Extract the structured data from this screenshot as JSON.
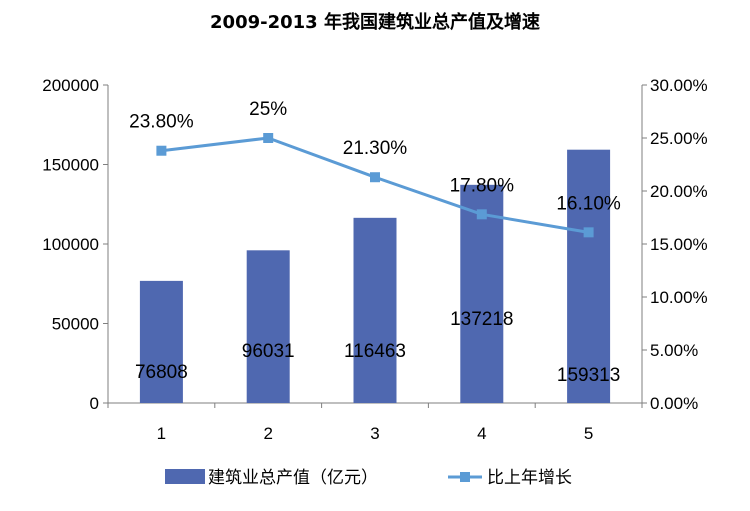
{
  "chart_data": {
    "type": "bar",
    "title": "2009-2013 年我国建筑业总产值及增速",
    "categories": [
      "1",
      "2",
      "3",
      "4",
      "5"
    ],
    "series": [
      {
        "name": "建筑业总产值（亿元）",
        "type": "bar",
        "axis": "left",
        "values": [
          76808,
          96031,
          116463,
          137218,
          159313
        ],
        "labels": [
          "76808",
          "96031",
          "116463",
          "137218",
          "159313"
        ],
        "color": "#4f68b0"
      },
      {
        "name": "比上年增长",
        "type": "line",
        "axis": "right",
        "values": [
          0.238,
          0.25,
          0.213,
          0.178,
          0.161
        ],
        "labels": [
          "23.80%",
          "25%",
          "21.30%",
          "17.80%",
          "16.10%"
        ],
        "color": "#5b9bd5"
      }
    ],
    "y_left": {
      "min": 0,
      "max": 200000,
      "ticks": [
        "0",
        "50000",
        "100000",
        "150000",
        "200000"
      ]
    },
    "y_right": {
      "min": 0,
      "max": 0.3,
      "ticks": [
        "0.00%",
        "5.00%",
        "10.00%",
        "15.00%",
        "20.00%",
        "25.00%",
        "30.00%"
      ]
    },
    "grid": false,
    "legend_position": "bottom"
  }
}
